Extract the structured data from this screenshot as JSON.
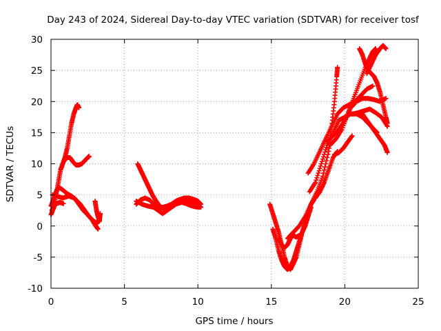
{
  "chart_data": {
    "type": "scatter",
    "title": "Day 243 of 2024, Sidereal Day-to-day VTEC variation (SDTVAR) for receiver tosf",
    "xlabel": "GPS time / hours",
    "ylabel": "SDTVAR / TECUs",
    "xlim": [
      0,
      25
    ],
    "ylim": [
      -10,
      30
    ],
    "x_ticks": [
      "0",
      "5",
      "10",
      "15",
      "20",
      "25"
    ],
    "y_ticks": [
      "-10",
      "-5",
      "0",
      "5",
      "10",
      "15",
      "20",
      "25",
      "30"
    ],
    "grid": true,
    "marker": "plus",
    "color": "#ff0000",
    "series": [
      {
        "points": [
          [
            0.0,
            1.8
          ],
          [
            0.2,
            3.0
          ],
          [
            0.35,
            5.0
          ],
          [
            0.5,
            7.0
          ],
          [
            0.65,
            9.0
          ],
          [
            0.8,
            10.0
          ],
          [
            0.95,
            11.0
          ],
          [
            1.1,
            12.5
          ],
          [
            1.25,
            14.5
          ],
          [
            1.4,
            16.5
          ],
          [
            1.55,
            18.0
          ],
          [
            1.7,
            19.0
          ],
          [
            1.8,
            19.5
          ],
          [
            1.9,
            19.0
          ]
        ]
      },
      {
        "points": [
          [
            0.9,
            10.5
          ],
          [
            1.1,
            11.0
          ],
          [
            1.3,
            11.0
          ],
          [
            1.5,
            10.3
          ],
          [
            1.7,
            9.8
          ],
          [
            1.9,
            9.8
          ],
          [
            2.1,
            10.0
          ],
          [
            2.3,
            10.5
          ],
          [
            2.5,
            11.0
          ],
          [
            2.6,
            11.2
          ]
        ]
      },
      {
        "points": [
          [
            0.0,
            3.2
          ],
          [
            0.2,
            4.5
          ],
          [
            0.4,
            5.8
          ],
          [
            0.55,
            6.2
          ],
          [
            0.8,
            5.8
          ],
          [
            1.1,
            5.2
          ],
          [
            1.4,
            4.8
          ],
          [
            1.7,
            4.2
          ],
          [
            2.0,
            3.5
          ],
          [
            2.3,
            2.5
          ],
          [
            2.6,
            1.5
          ],
          [
            2.9,
            0.8
          ],
          [
            3.1,
            0.5
          ],
          [
            3.3,
            0.8
          ]
        ]
      },
      {
        "points": [
          [
            0.1,
            5.0
          ],
          [
            0.4,
            4.8
          ],
          [
            0.8,
            4.5
          ],
          [
            1.2,
            4.8
          ],
          [
            1.6,
            4.5
          ],
          [
            1.9,
            3.5
          ],
          [
            2.2,
            2.5
          ],
          [
            2.5,
            1.8
          ],
          [
            2.8,
            1.0
          ],
          [
            3.0,
            0.2
          ],
          [
            3.2,
            -0.5
          ]
        ]
      },
      {
        "points": [
          [
            0.05,
            2.5
          ],
          [
            0.3,
            3.5
          ],
          [
            0.6,
            3.8
          ],
          [
            0.85,
            3.6
          ]
        ]
      },
      {
        "points": [
          [
            3.0,
            4.0
          ],
          [
            3.1,
            2.5
          ],
          [
            3.2,
            1.5
          ],
          [
            3.3,
            0.8
          ],
          [
            3.35,
            2.0
          ]
        ]
      },
      {
        "points": [
          [
            5.9,
            10.0
          ],
          [
            6.1,
            9.0
          ],
          [
            6.3,
            8.0
          ],
          [
            6.5,
            7.0
          ],
          [
            6.7,
            6.0
          ],
          [
            6.9,
            5.0
          ],
          [
            7.1,
            4.2
          ],
          [
            7.3,
            3.5
          ],
          [
            7.5,
            3.0
          ],
          [
            7.7,
            2.8
          ],
          [
            8.0,
            3.0
          ],
          [
            8.3,
            3.3
          ],
          [
            8.6,
            3.6
          ],
          [
            8.9,
            3.8
          ],
          [
            9.2,
            3.6
          ],
          [
            9.5,
            3.3
          ],
          [
            9.8,
            3.1
          ],
          [
            10.1,
            3.0
          ]
        ]
      },
      {
        "points": [
          [
            5.8,
            3.5
          ],
          [
            6.1,
            4.2
          ],
          [
            6.4,
            4.5
          ],
          [
            6.7,
            4.2
          ],
          [
            7.0,
            3.5
          ],
          [
            7.3,
            3.0
          ],
          [
            7.6,
            3.0
          ],
          [
            7.9,
            3.2
          ],
          [
            8.2,
            3.5
          ],
          [
            8.5,
            4.0
          ],
          [
            8.8,
            4.3
          ],
          [
            9.1,
            4.5
          ],
          [
            9.4,
            4.5
          ],
          [
            9.7,
            4.3
          ],
          [
            10.0,
            4.0
          ],
          [
            10.2,
            3.5
          ]
        ]
      },
      {
        "points": [
          [
            5.8,
            4.0
          ],
          [
            6.2,
            3.5
          ],
          [
            6.6,
            3.2
          ],
          [
            7.0,
            3.0
          ],
          [
            7.3,
            2.5
          ],
          [
            7.6,
            2.0
          ],
          [
            7.9,
            2.5
          ],
          [
            8.2,
            3.0
          ],
          [
            8.5,
            3.5
          ],
          [
            8.8,
            3.8
          ],
          [
            9.1,
            4.0
          ],
          [
            9.4,
            4.2
          ],
          [
            9.7,
            3.8
          ],
          [
            10.0,
            3.5
          ],
          [
            10.2,
            3.0
          ]
        ]
      },
      {
        "points": [
          [
            14.9,
            3.5
          ],
          [
            15.1,
            2.0
          ],
          [
            15.3,
            0.5
          ],
          [
            15.5,
            -1.0
          ],
          [
            15.7,
            -3.0
          ],
          [
            15.9,
            -5.0
          ],
          [
            16.1,
            -6.5
          ],
          [
            16.3,
            -7.0
          ],
          [
            16.5,
            -6.0
          ],
          [
            16.7,
            -5.0
          ],
          [
            16.9,
            -3.0
          ],
          [
            17.1,
            -1.0
          ],
          [
            17.3,
            0.5
          ],
          [
            17.5,
            2.0
          ],
          [
            17.7,
            3.5
          ],
          [
            17.9,
            4.2
          ]
        ]
      },
      {
        "points": [
          [
            15.1,
            -0.5
          ],
          [
            15.3,
            -2.0
          ],
          [
            15.5,
            -4.0
          ],
          [
            15.7,
            -5.5
          ],
          [
            15.9,
            -6.5
          ],
          [
            16.1,
            -7.0
          ],
          [
            16.3,
            -6.5
          ],
          [
            16.5,
            -5.5
          ],
          [
            16.7,
            -4.0
          ],
          [
            16.9,
            -2.5
          ],
          [
            17.1,
            -1.0
          ],
          [
            17.3,
            0.0
          ],
          [
            17.5,
            1.5
          ],
          [
            17.7,
            3.0
          ]
        ]
      },
      {
        "points": [
          [
            15.5,
            -2.0
          ],
          [
            15.7,
            -3.0
          ],
          [
            15.9,
            -3.5
          ],
          [
            16.1,
            -3.0
          ],
          [
            16.3,
            -2.0
          ],
          [
            16.5,
            -1.5
          ],
          [
            16.7,
            -1.8
          ],
          [
            16.9,
            -1.5
          ]
        ]
      },
      {
        "points": [
          [
            16.1,
            -2.0
          ],
          [
            16.5,
            -1.0
          ],
          [
            16.9,
            0.0
          ],
          [
            17.3,
            1.5
          ],
          [
            17.7,
            3.5
          ],
          [
            18.1,
            5.5
          ],
          [
            18.5,
            8.0
          ],
          [
            18.9,
            12.0
          ],
          [
            19.1,
            16.0
          ],
          [
            19.3,
            20.0
          ],
          [
            19.45,
            24.0
          ],
          [
            19.5,
            25.5
          ]
        ]
      },
      {
        "points": [
          [
            17.5,
            8.5
          ],
          [
            17.9,
            10.0
          ],
          [
            18.3,
            12.0
          ],
          [
            18.7,
            14.0
          ],
          [
            19.1,
            16.0
          ],
          [
            19.5,
            18.0
          ],
          [
            19.9,
            19.0
          ],
          [
            20.3,
            19.5
          ],
          [
            20.7,
            20.0
          ],
          [
            21.1,
            21.0
          ],
          [
            21.5,
            22.0
          ],
          [
            21.9,
            22.5
          ]
        ]
      },
      {
        "points": [
          [
            17.6,
            5.5
          ],
          [
            18.0,
            7.0
          ],
          [
            18.4,
            10.0
          ],
          [
            18.8,
            13.0
          ],
          [
            19.2,
            15.0
          ],
          [
            19.6,
            17.0
          ],
          [
            20.0,
            17.5
          ],
          [
            20.4,
            18.0
          ],
          [
            20.8,
            18.0
          ],
          [
            21.2,
            17.5
          ],
          [
            21.6,
            16.5
          ],
          [
            22.0,
            15.5
          ],
          [
            22.2,
            15.0
          ]
        ]
      },
      {
        "points": [
          [
            18.8,
            13.5
          ],
          [
            19.2,
            14.5
          ],
          [
            19.6,
            15.5
          ],
          [
            20.0,
            17.0
          ],
          [
            20.4,
            19.0
          ],
          [
            20.8,
            20.0
          ],
          [
            21.2,
            20.5
          ],
          [
            21.6,
            20.5
          ],
          [
            22.0,
            20.3
          ],
          [
            22.4,
            20.0
          ],
          [
            22.8,
            20.5
          ]
        ]
      },
      {
        "points": [
          [
            19.0,
            13.0
          ],
          [
            19.4,
            14.0
          ],
          [
            19.8,
            15.5
          ],
          [
            20.2,
            18.0
          ],
          [
            20.6,
            20.5
          ],
          [
            21.0,
            23.0
          ],
          [
            21.4,
            25.5
          ],
          [
            21.7,
            27.0
          ],
          [
            21.9,
            28.0
          ],
          [
            22.1,
            28.5
          ]
        ]
      },
      {
        "points": [
          [
            21.0,
            28.5
          ],
          [
            21.2,
            27.5
          ],
          [
            21.4,
            26.0
          ],
          [
            21.6,
            25.0
          ],
          [
            21.8,
            24.5
          ],
          [
            22.0,
            24.0
          ],
          [
            22.2,
            23.0
          ],
          [
            22.4,
            21.5
          ],
          [
            22.6,
            19.5
          ],
          [
            22.8,
            17.5
          ],
          [
            22.9,
            16.5
          ]
        ]
      },
      {
        "points": [
          [
            21.5,
            24.5
          ],
          [
            21.8,
            26.0
          ],
          [
            22.1,
            27.5
          ],
          [
            22.4,
            28.5
          ],
          [
            22.6,
            29.0
          ],
          [
            22.8,
            28.5
          ]
        ]
      },
      {
        "points": [
          [
            21.2,
            18.0
          ],
          [
            21.5,
            17.0
          ],
          [
            21.8,
            16.0
          ],
          [
            22.1,
            15.0
          ],
          [
            22.4,
            14.0
          ],
          [
            22.7,
            13.0
          ],
          [
            22.9,
            11.8
          ]
        ]
      },
      {
        "points": [
          [
            19.3,
            11.5
          ],
          [
            19.6,
            11.8
          ],
          [
            19.9,
            12.5
          ],
          [
            20.2,
            13.5
          ],
          [
            20.5,
            14.5
          ]
        ]
      },
      {
        "points": [
          [
            20.5,
            18.0
          ],
          [
            20.9,
            18.2
          ],
          [
            21.3,
            18.5
          ],
          [
            21.7,
            18.8
          ],
          [
            22.1,
            18.2
          ],
          [
            22.5,
            17.5
          ],
          [
            22.9,
            16.0
          ]
        ]
      },
      {
        "points": [
          [
            18.0,
            4.5
          ],
          [
            18.3,
            5.5
          ],
          [
            18.6,
            7.0
          ],
          [
            18.9,
            9.0
          ],
          [
            19.2,
            11.0
          ],
          [
            19.5,
            12.0
          ]
        ]
      }
    ]
  }
}
